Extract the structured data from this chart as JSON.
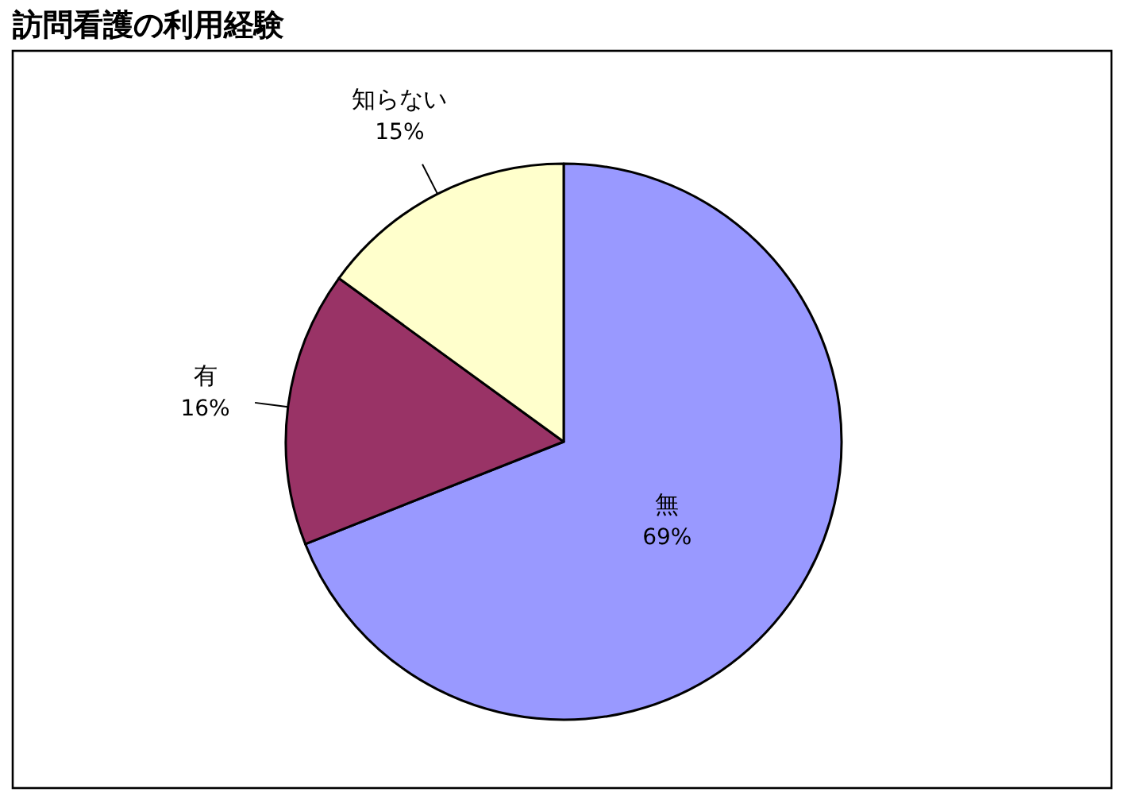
{
  "chart_data": {
    "type": "pie",
    "title": "訪問看護の利用経験",
    "categories": [
      "無",
      "有",
      "知らない"
    ],
    "values": [
      69,
      16,
      15
    ],
    "value_labels": [
      "69%",
      "16%",
      "15%"
    ],
    "colors": [
      "#9999ff",
      "#993366",
      "#ffffcc"
    ]
  }
}
